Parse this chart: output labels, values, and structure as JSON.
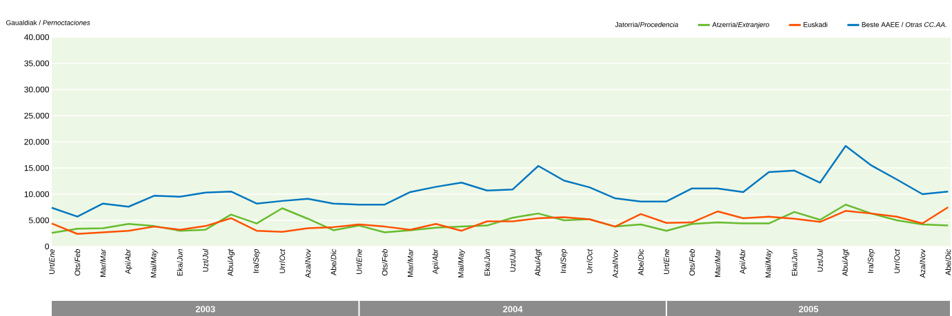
{
  "chart_data": {
    "type": "line",
    "ylabel": "Gaualdiak / *Pernoctaciones*",
    "legend_title": "Jatorria/*Procedencia*",
    "categories": [
      "Urt/*Ene*",
      "Ots/*Feb*",
      "Mar/*Mar*",
      "Api/*Abr*",
      "Mai/*May*",
      "Eka/*Jun*",
      "Uzt/*Jul*",
      "Abu/*Agt*",
      "Ira/*Sep*",
      "Urr/*Oct*",
      "Aza/*Nov*",
      "Abe/*Dic*",
      "Urt/*Ene*",
      "Ots/*Feb*",
      "Mar/*Mar*",
      "Api/*Abr*",
      "Mai/*May*",
      "Eka/*Jun*",
      "Uzt/*Jul*",
      "Abu/*Agt*",
      "Ira/*Sep*",
      "Urr/*Oct*",
      "Aza/*Nov*",
      "Abe/*Dic*",
      "Urt/*Ene*",
      "Ots/*Feb*",
      "Mar/*Mar*",
      "Api/*Abr*",
      "Mai/*May*",
      "Eka/*Jun*",
      "Uzt/*Jul*",
      "Abu/*Agt*",
      "Ira/*Sep*",
      "Urr/*Oct*",
      "Aza/*Nov*",
      "Abe/*Dic*"
    ],
    "series": [
      {
        "name": "Atzerria/*Extranjero*",
        "color": "#66bb2e",
        "values": [
          2600,
          3400,
          3500,
          4300,
          3900,
          3000,
          3200,
          6100,
          4400,
          7300,
          5300,
          3100,
          4000,
          2700,
          3100,
          3600,
          3800,
          4000,
          5500,
          6300,
          5000,
          5200,
          3800,
          4200,
          3000,
          4300,
          4600,
          4400,
          4400,
          6600,
          5100,
          8000,
          6300,
          5000,
          4200,
          4000
        ]
      },
      {
        "name": "Euskadi",
        "color": "#ff5000",
        "values": [
          4400,
          2400,
          2700,
          3000,
          3800,
          3200,
          3900,
          5400,
          3000,
          2800,
          3500,
          3700,
          4200,
          3800,
          3200,
          4300,
          3000,
          4800,
          4800,
          5400,
          5600,
          5200,
          3800,
          6200,
          4500,
          4600,
          6700,
          5400,
          5700,
          5300,
          4700,
          6800,
          6300,
          5700,
          4400,
          7500
        ]
      },
      {
        "name": "Beste AAEE / *Otras CC.AA.*",
        "color": "#0077c0",
        "values": [
          7400,
          5700,
          8200,
          7600,
          9700,
          9500,
          10300,
          10500,
          8200,
          8700,
          9100,
          8200,
          8000,
          8000,
          10400,
          11400,
          12200,
          10700,
          10900,
          15400,
          12600,
          11300,
          9200,
          8600,
          8600,
          11100,
          11100,
          10400,
          14200,
          14500,
          12200,
          19200,
          15500,
          12800,
          10000,
          10500
        ]
      }
    ],
    "ylim": [
      0,
      40000
    ],
    "yticks": [
      0,
      {
        "value": 5000,
        "label": "5.000"
      },
      {
        "value": 10000,
        "label": "10.000"
      },
      {
        "value": 15000,
        "label": "15.000"
      },
      {
        "value": 20000,
        "label": "20.000"
      },
      {
        "value": 25000,
        "label": "25.000"
      },
      {
        "value": 30000,
        "label": "30.000"
      },
      {
        "value": 35000,
        "label": "35.000"
      },
      {
        "value": 40000,
        "label": "40.000"
      }
    ],
    "grid": "y",
    "legend": "top right",
    "marker": "none",
    "line_style": "solid",
    "annotations": [
      "2003",
      "2004",
      "2005"
    ]
  }
}
